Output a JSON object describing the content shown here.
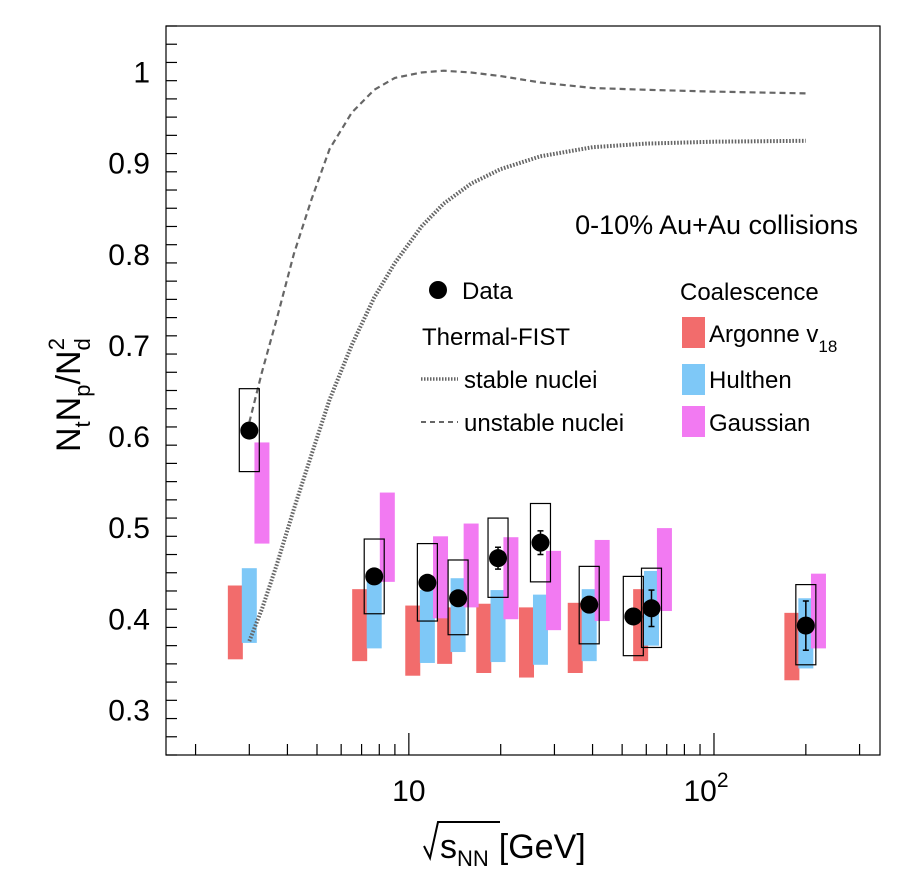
{
  "chart_data": {
    "type": "scatter",
    "title": "",
    "xlabel_root": "s",
    "xlabel_sub": "NN",
    "xlabel_unit": "[GeV]",
    "ylabel_parts": {
      "a": "N",
      "a_sub": "t",
      "b": "N",
      "b_sub": "p",
      "c": "/N",
      "c_sub": "d",
      "c_sup": "2"
    },
    "x_scale": "log",
    "xlim": [
      1.6,
      350
    ],
    "ylim": [
      0.25,
      1.05
    ],
    "x_tick_labels": [
      {
        "x": 10,
        "label": "10"
      },
      {
        "x": 100,
        "label": "10",
        "sup": "2"
      }
    ],
    "y_ticks": [
      0.3,
      0.4,
      0.5,
      0.6,
      0.7,
      0.8,
      0.9,
      1.0
    ],
    "y_tick_labels": [
      "0.3",
      "0.4",
      "0.5",
      "0.6",
      "0.7",
      "0.8",
      "0.9",
      "1"
    ],
    "annotation": "0-10% Au+Au collisions",
    "legend": {
      "data": "Data",
      "thermal_header": "Thermal-FIST",
      "stable": "stable nuclei",
      "unstable": "unstable nuclei",
      "coal_header": "Coalescence",
      "argonne": "Argonne v",
      "argonne_sub": "18",
      "hulthen": "Hulthen",
      "gaussian": "Gaussian"
    },
    "colors": {
      "argonne": "#f26c6c",
      "hulthen": "#7ec8f7",
      "gaussian": "#f27af2",
      "curve": "#666666"
    },
    "data_points": [
      {
        "x": 3.0,
        "y": 0.606,
        "stat": 0.002,
        "sys_lo": 0.561,
        "sys_hi": 0.652
      },
      {
        "x": 7.7,
        "y": 0.446,
        "stat": 0.004,
        "sys_lo": 0.405,
        "sys_hi": 0.487
      },
      {
        "x": 11.5,
        "y": 0.439,
        "stat": 0.005,
        "sys_lo": 0.397,
        "sys_hi": 0.482
      },
      {
        "x": 14.5,
        "y": 0.422,
        "stat": 0.005,
        "sys_lo": 0.382,
        "sys_hi": 0.464
      },
      {
        "x": 19.6,
        "y": 0.466,
        "stat": 0.012,
        "sys_lo": 0.423,
        "sys_hi": 0.51
      },
      {
        "x": 27,
        "y": 0.483,
        "stat": 0.013,
        "sys_lo": 0.44,
        "sys_hi": 0.526
      },
      {
        "x": 39,
        "y": 0.415,
        "stat": 0.008,
        "sys_lo": 0.372,
        "sys_hi": 0.457
      },
      {
        "x": 54.4,
        "y": 0.402,
        "stat": 0.008,
        "sys_lo": 0.359,
        "sys_hi": 0.446
      },
      {
        "x": 62.4,
        "y": 0.411,
        "stat": 0.02,
        "sys_lo": 0.368,
        "sys_hi": 0.455
      },
      {
        "x": 200,
        "y": 0.392,
        "stat": 0.027,
        "sys_lo": 0.349,
        "sys_hi": 0.437
      }
    ],
    "coalescence": {
      "argonne": [
        {
          "x": 2.7,
          "lo": 0.355,
          "hi": 0.436
        },
        {
          "x": 6.9,
          "lo": 0.353,
          "hi": 0.432
        },
        {
          "x": 10.3,
          "lo": 0.337,
          "hi": 0.414
        },
        {
          "x": 13.1,
          "lo": 0.35,
          "hi": 0.412
        },
        {
          "x": 17.6,
          "lo": 0.34,
          "hi": 0.416
        },
        {
          "x": 24.3,
          "lo": 0.335,
          "hi": 0.412
        },
        {
          "x": 35.1,
          "lo": 0.34,
          "hi": 0.417
        },
        {
          "x": 57.5,
          "lo": 0.353,
          "hi": 0.432
        },
        {
          "x": 180,
          "lo": 0.332,
          "hi": 0.406
        }
      ],
      "hulthen": [
        {
          "x": 3.0,
          "lo": 0.373,
          "hi": 0.455
        },
        {
          "x": 7.7,
          "lo": 0.367,
          "hi": 0.447
        },
        {
          "x": 11.5,
          "lo": 0.351,
          "hi": 0.431
        },
        {
          "x": 14.5,
          "lo": 0.363,
          "hi": 0.444
        },
        {
          "x": 19.6,
          "lo": 0.352,
          "hi": 0.431
        },
        {
          "x": 27,
          "lo": 0.349,
          "hi": 0.426
        },
        {
          "x": 39,
          "lo": 0.353,
          "hi": 0.432
        },
        {
          "x": 62.4,
          "lo": 0.37,
          "hi": 0.452
        },
        {
          "x": 200,
          "lo": 0.345,
          "hi": 0.422
        }
      ],
      "gaussian": [
        {
          "x": 3.3,
          "lo": 0.482,
          "hi": 0.593
        },
        {
          "x": 8.5,
          "lo": 0.44,
          "hi": 0.538
        },
        {
          "x": 12.7,
          "lo": 0.4,
          "hi": 0.49
        },
        {
          "x": 16.0,
          "lo": 0.412,
          "hi": 0.504
        },
        {
          "x": 21.6,
          "lo": 0.399,
          "hi": 0.489
        },
        {
          "x": 29.8,
          "lo": 0.387,
          "hi": 0.474
        },
        {
          "x": 43,
          "lo": 0.397,
          "hi": 0.486
        },
        {
          "x": 68.8,
          "lo": 0.408,
          "hi": 0.499
        },
        {
          "x": 220,
          "lo": 0.367,
          "hi": 0.449
        }
      ]
    },
    "curves": {
      "unstable": [
        [
          3.0,
          0.615
        ],
        [
          3.3,
          0.67
        ],
        [
          3.7,
          0.73
        ],
        [
          4.2,
          0.8
        ],
        [
          4.8,
          0.86
        ],
        [
          5.5,
          0.915
        ],
        [
          6.5,
          0.955
        ],
        [
          7.7,
          0.98
        ],
        [
          9,
          0.993
        ],
        [
          11,
          0.999
        ],
        [
          13,
          1.001
        ],
        [
          16,
          0.999
        ],
        [
          20,
          0.995
        ],
        [
          27,
          0.988
        ],
        [
          40,
          0.982
        ],
        [
          60,
          0.98
        ],
        [
          100,
          0.978
        ],
        [
          200,
          0.976
        ]
      ],
      "stable": [
        [
          3.0,
          0.375
        ],
        [
          3.3,
          0.41
        ],
        [
          3.7,
          0.46
        ],
        [
          4.2,
          0.52
        ],
        [
          4.8,
          0.58
        ],
        [
          5.5,
          0.64
        ],
        [
          6.5,
          0.7
        ],
        [
          7.7,
          0.752
        ],
        [
          9,
          0.79
        ],
        [
          11,
          0.83
        ],
        [
          13,
          0.855
        ],
        [
          16,
          0.877
        ],
        [
          20,
          0.893
        ],
        [
          27,
          0.907
        ],
        [
          40,
          0.917
        ],
        [
          60,
          0.921
        ],
        [
          100,
          0.923
        ],
        [
          200,
          0.924
        ]
      ]
    }
  }
}
